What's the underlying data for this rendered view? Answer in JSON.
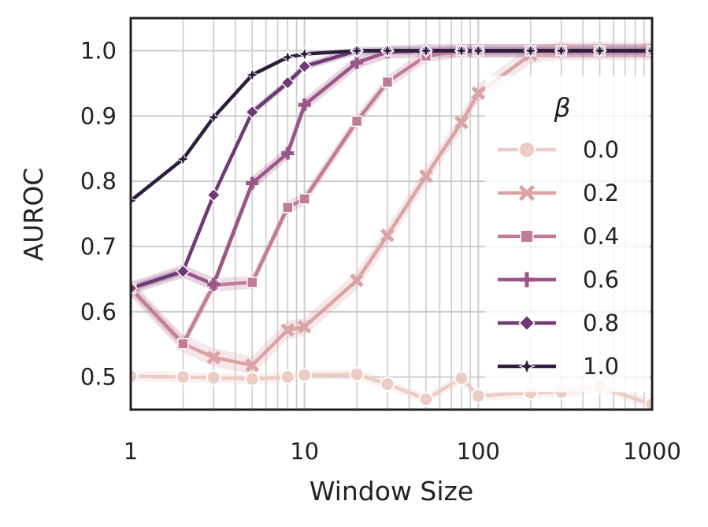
{
  "chart_data": {
    "type": "line",
    "title": "",
    "xlabel": "Window Size",
    "ylabel": "AUROC",
    "xscale": "log",
    "xlim": [
      1,
      1000
    ],
    "ylim": [
      0.45,
      1.05
    ],
    "xticks": [
      1,
      10,
      100,
      1000
    ],
    "xtick_labels": [
      "1",
      "10",
      "100",
      "1000"
    ],
    "yticks": [
      0.5,
      0.6,
      0.7,
      0.8,
      0.9,
      1.0
    ],
    "ytick_labels": [
      "0.5",
      "0.6",
      "0.7",
      "0.8",
      "0.9",
      "1.0"
    ],
    "grid": true,
    "legend_title": "β",
    "legend_placement": "right",
    "x": [
      1,
      2,
      3,
      5,
      8,
      10,
      20,
      30,
      50,
      80,
      100,
      200,
      300,
      500,
      1000
    ],
    "series": [
      {
        "name": "0.0",
        "color": "#eccdc6",
        "marker": "circle",
        "values": [
          0.501,
          0.5,
          0.499,
          0.497,
          0.5,
          0.503,
          0.504,
          0.489,
          0.466,
          0.498,
          0.471,
          0.476,
          0.477,
          0.485,
          0.458
        ],
        "band": 0.008
      },
      {
        "name": "0.2",
        "color": "#dba3a6",
        "marker": "x",
        "values": [
          0.636,
          0.551,
          0.53,
          0.518,
          0.572,
          0.577,
          0.648,
          0.717,
          0.808,
          0.89,
          0.935,
          0.994,
          1.0,
          1.0,
          1.0
        ],
        "band": 0.014
      },
      {
        "name": "0.4",
        "color": "#c07c98",
        "marker": "square",
        "values": [
          0.636,
          0.551,
          0.641,
          0.645,
          0.76,
          0.773,
          0.892,
          0.952,
          0.992,
          1.0,
          1.0,
          1.0,
          1.0,
          1.0,
          1.0
        ],
        "band": 0.01
      },
      {
        "name": "0.6",
        "color": "#9c5588",
        "marker": "plus",
        "values": [
          0.636,
          0.662,
          0.642,
          0.797,
          0.843,
          0.917,
          0.982,
          0.998,
          1.0,
          1.0,
          1.0,
          1.0,
          1.0,
          1.0,
          1.0
        ],
        "band": 0.01
      },
      {
        "name": "0.8",
        "color": "#6d3a73",
        "marker": "diamond",
        "values": [
          0.636,
          0.662,
          0.779,
          0.906,
          0.951,
          0.976,
          1.0,
          1.0,
          1.0,
          1.0,
          1.0,
          1.0,
          1.0,
          1.0,
          1.0
        ],
        "band": 0.006
      },
      {
        "name": "1.0",
        "color": "#2d1e3e",
        "marker": "star",
        "values": [
          0.77,
          0.834,
          0.898,
          0.963,
          0.99,
          0.995,
          1.0,
          1.0,
          1.0,
          1.0,
          1.0,
          1.0,
          1.0,
          1.0,
          1.0
        ],
        "band": 0.003
      }
    ]
  }
}
